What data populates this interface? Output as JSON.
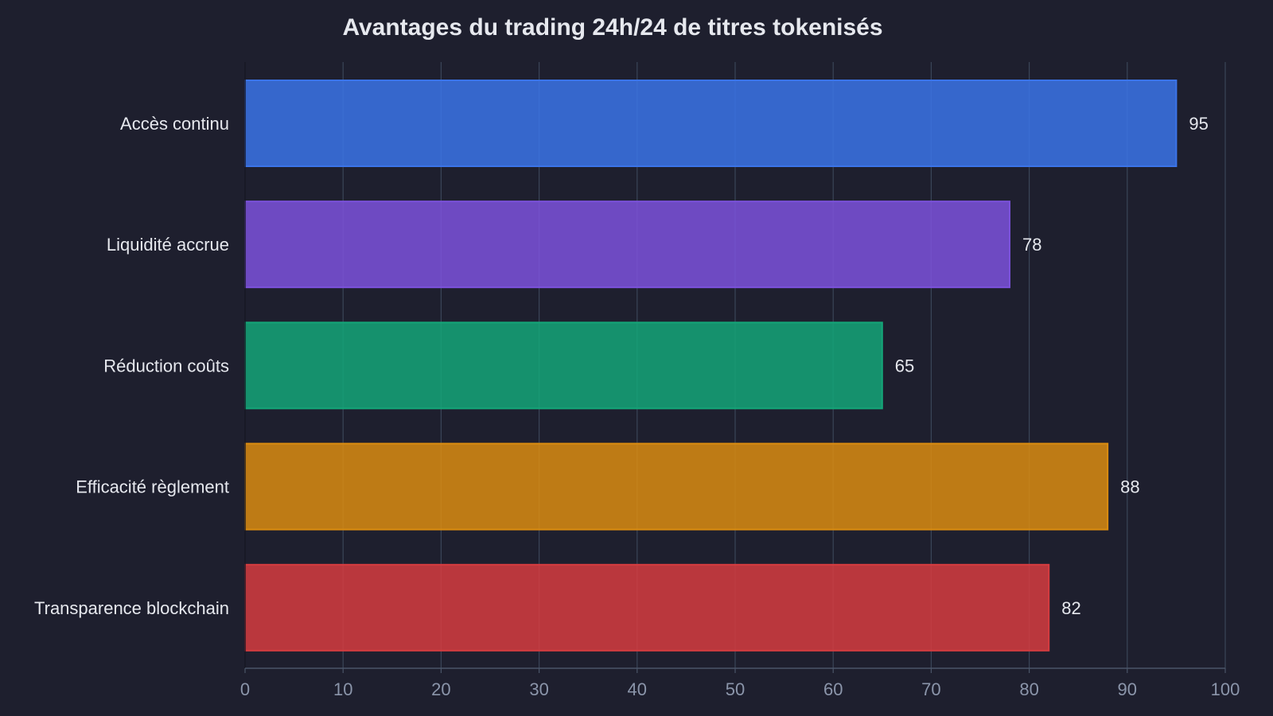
{
  "chart_data": {
    "type": "bar",
    "orientation": "horizontal",
    "title": "Avantages du trading 24h/24 de titres tokenisés",
    "xlabel": "",
    "ylabel": "",
    "categories": [
      "Accès continu",
      "Liquidité accrue",
      "Réduction coûts",
      "Efficacité règlement",
      "Transparence blockchain"
    ],
    "values": [
      95,
      78,
      65,
      88,
      82
    ],
    "colors": [
      "#3b74e8",
      "#7c52dc",
      "#14a678",
      "#da8c10",
      "#d63c40"
    ],
    "xlim": [
      0,
      100
    ],
    "xticks": [
      0,
      10,
      20,
      30,
      40,
      50,
      60,
      70,
      80,
      90,
      100
    ],
    "grid": true,
    "show_value_labels": true
  },
  "theme": {
    "background": "#1e1f2e",
    "grid_color": "#3a4558",
    "axis_color": "#4a5568",
    "text_color": "#e6e8ee",
    "tick_color": "#8b95aa"
  }
}
